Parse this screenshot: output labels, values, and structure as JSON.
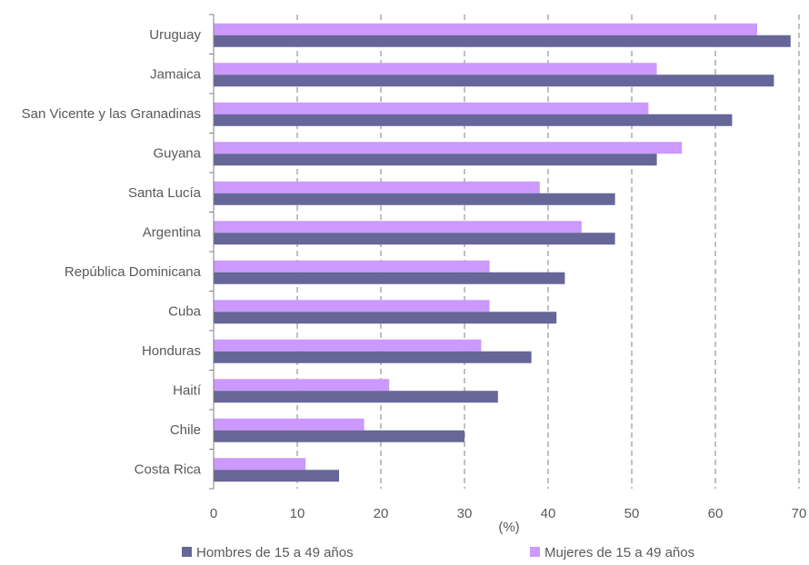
{
  "chart_data": {
    "type": "bar",
    "orientation": "horizontal",
    "categories": [
      "Uruguay",
      "Jamaica",
      "San Vicente y las Granadinas",
      "Guyana",
      "Santa Lucía",
      "Argentina",
      "República Dominicana",
      "Cuba",
      "Honduras",
      "Haití",
      "Chile",
      "Costa Rica"
    ],
    "series": [
      {
        "name": "Mujeres de 15 a 49 años",
        "color": "#cc99ff",
        "values": [
          65,
          53,
          52,
          56,
          39,
          44,
          33,
          33,
          32,
          21,
          18,
          11
        ]
      },
      {
        "name": "Hombres de 15 a 49 años",
        "color": "#666699",
        "values": [
          69,
          67,
          62,
          53,
          48,
          48,
          42,
          41,
          38,
          34,
          30,
          15
        ]
      }
    ],
    "xlabel": "(%)",
    "ylabel": "",
    "title": "",
    "xlim": [
      0,
      70
    ],
    "xticks": [
      "0",
      "10",
      "20",
      "30",
      "40",
      "50",
      "60",
      "70"
    ],
    "grid": "vertical-dashed",
    "legend": {
      "position": "bottom",
      "items": [
        "Hombres de 15 a 49 años",
        "Mujeres de 15 a 49 años"
      ]
    }
  }
}
